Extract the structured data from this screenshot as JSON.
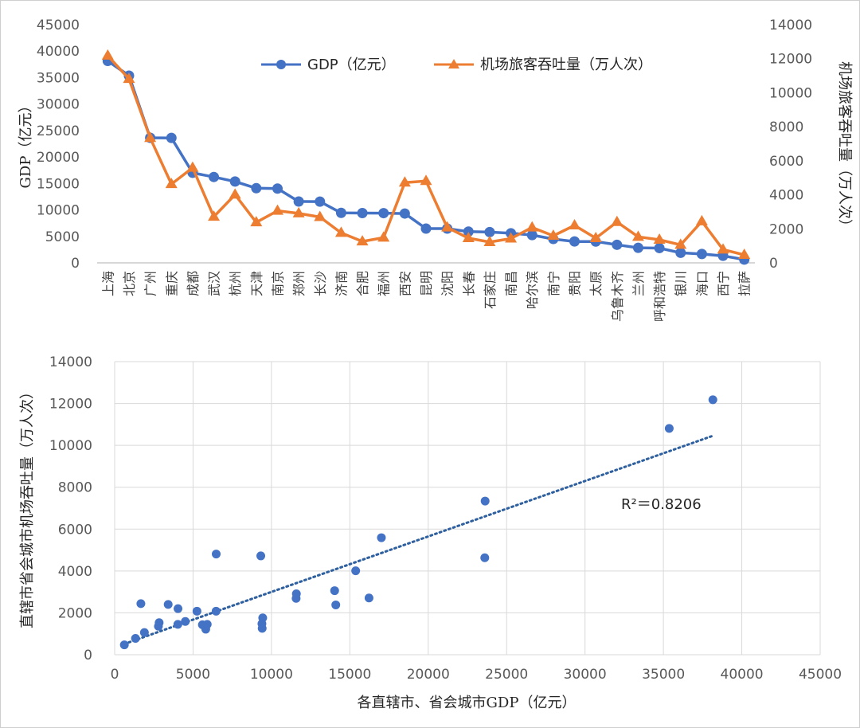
{
  "chart_data": [
    {
      "type": "line",
      "categories": [
        "上海",
        "北京",
        "广州",
        "重庆",
        "成都",
        "武汉",
        "杭州",
        "天津",
        "南京",
        "郑州",
        "长沙",
        "济南",
        "合肥",
        "福州",
        "西安",
        "昆明",
        "沈阳",
        "长春",
        "石家庄",
        "南昌",
        "哈尔滨",
        "南宁",
        "贵阳",
        "太原",
        "乌鲁木齐",
        "兰州",
        "呼和浩特",
        "银川",
        "海口",
        "西宁",
        "拉萨"
      ],
      "series": [
        {
          "name": "GDP（亿元）",
          "axis": "left",
          "color": "#4472c4",
          "marker": "circle",
          "values": [
            38155,
            35371,
            23628,
            23606,
            17013,
            16223,
            15373,
            14104,
            14030,
            11590,
            11574,
            9443,
            9409,
            9393,
            9321,
            6476,
            6470,
            5904,
            5810,
            5596,
            5249,
            4506,
            4040,
            4029,
            3413,
            2837,
            2791,
            1897,
            1672,
            1328,
            618
          ]
        },
        {
          "name": "机场旅客吞吐量（万人次）",
          "axis": "right",
          "color": "#ed7d31",
          "marker": "triangle",
          "values": [
            12180,
            10810,
            7340,
            4630,
            5590,
            2710,
            4010,
            2380,
            3060,
            2910,
            2690,
            1760,
            1260,
            1480,
            4720,
            4810,
            2080,
            1450,
            1220,
            1430,
            2080,
            1590,
            2200,
            1450,
            2400,
            1530,
            1360,
            1060,
            2440,
            780,
            470
          ]
        }
      ],
      "ylabel": "GDP（亿元）",
      "y2label": "机场旅客吞吐量（万人次）",
      "ylim": [
        0,
        45000
      ],
      "y2lim": [
        0,
        14000
      ],
      "yticks": [
        0,
        5000,
        10000,
        15000,
        20000,
        25000,
        30000,
        35000,
        40000,
        45000
      ],
      "y2ticks": [
        0,
        2000,
        4000,
        6000,
        8000,
        10000,
        12000,
        14000
      ],
      "legend": "top-center",
      "grid": false
    },
    {
      "type": "scatter",
      "x": [
        38155,
        35371,
        23628,
        23606,
        17013,
        16223,
        15373,
        14104,
        14030,
        11590,
        11574,
        9443,
        9409,
        9393,
        9321,
        6476,
        6470,
        5904,
        5810,
        5596,
        5249,
        4506,
        4040,
        4029,
        3413,
        2837,
        2791,
        1897,
        1672,
        1328,
        618
      ],
      "y": [
        12180,
        10810,
        7340,
        4630,
        5590,
        2710,
        4010,
        2380,
        3060,
        2910,
        2690,
        1760,
        1260,
        1480,
        4720,
        4810,
        2080,
        1450,
        1220,
        1430,
        2080,
        1590,
        2200,
        1450,
        2400,
        1530,
        1360,
        1060,
        2440,
        780,
        470
      ],
      "color": "#4472c4",
      "trendline": {
        "type": "linear",
        "style": "dotted",
        "r2_label": "R²＝0.8206"
      },
      "xlabel": "各直辖市、省会城市GDP（亿元）",
      "ylabel": "直辖市省会城市机场吞吐量（万人次）",
      "xlim": [
        0,
        45000
      ],
      "ylim": [
        0,
        14000
      ],
      "xticks": [
        0,
        5000,
        10000,
        15000,
        20000,
        25000,
        30000,
        35000,
        40000,
        45000
      ],
      "yticks": [
        0,
        2000,
        4000,
        6000,
        8000,
        10000,
        12000,
        14000
      ],
      "grid": true
    }
  ]
}
